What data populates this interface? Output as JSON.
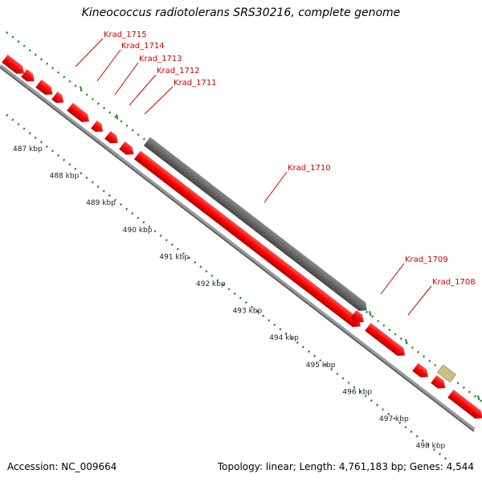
{
  "title": "Kineococcus radiotolerans SRS30216, complete genome",
  "footer": {
    "accession": "Accession: NC_009664",
    "stats": "Topology: linear; Length: 4,761,183 bp; Genes: 4,544"
  },
  "genes": [
    "Krad_1715",
    "Krad_1714",
    "Krad_1713",
    "Krad_1712",
    "Krad_1711",
    "Krad_1710",
    "Krad_1709",
    "Krad_1708"
  ],
  "scale_labels": [
    "487 kbp",
    "488 kbp",
    "489 kbp",
    "490 kbp",
    "491 kbp",
    "492 kbp",
    "493 kbp",
    "494 kbp",
    "495 kbp",
    "496 kbp",
    "497 kbp",
    "498 kbp"
  ],
  "colors": {
    "gene": "#ff0000",
    "gene_label": "#cc0000",
    "highlighted_gene": "#666666",
    "other_feature": "#c8c080",
    "backbone": "#888888",
    "tick": "#228822"
  }
}
